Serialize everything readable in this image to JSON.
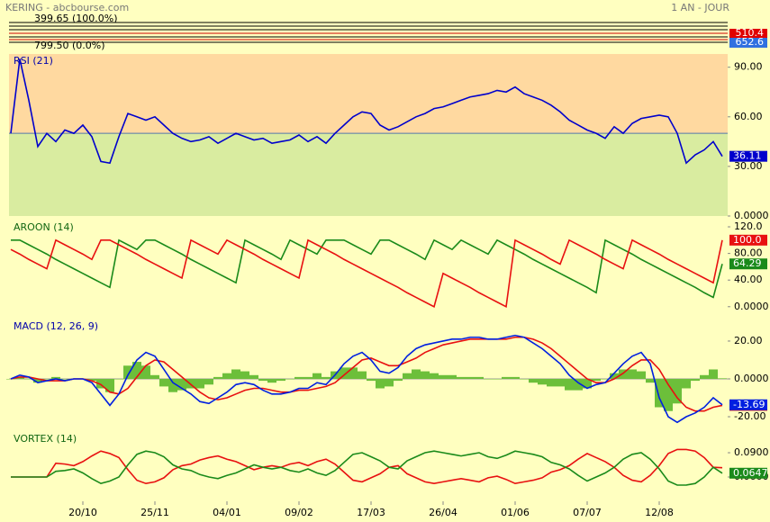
{
  "header": {
    "title": "KERING - abcbourse.com",
    "period": "1 AN - JOUR"
  },
  "price_panel": {
    "levels": [
      "399.65 (100.0%)",
      "799.50 (0.0%)"
    ],
    "last_prices": [
      {
        "label": "510.4",
        "color": "#e00000"
      },
      {
        "label": "652.6",
        "color": "#3070e0"
      }
    ]
  },
  "x_axis": {
    "categories": [
      null,
      null,
      null,
      null,
      null,
      null,
      null,
      null,
      "20/10",
      null,
      null,
      null,
      null,
      null,
      null,
      null,
      "25/11",
      null,
      null,
      null,
      null,
      null,
      null,
      null,
      "04/01",
      null,
      null,
      null,
      null,
      null,
      null,
      null,
      "09/02",
      null,
      null,
      null,
      null,
      null,
      null,
      null,
      "17/03",
      null,
      null,
      null,
      null,
      null,
      null,
      null,
      "26/04",
      null,
      null,
      null,
      null,
      null,
      null,
      null,
      "01/06",
      null,
      null,
      null,
      null,
      null,
      null,
      null,
      "07/07",
      null,
      null,
      null,
      null,
      null,
      null,
      null,
      "12/08",
      null,
      null,
      null,
      null,
      null,
      null,
      null
    ]
  },
  "chart_data": [
    {
      "type": "line",
      "title": "RSI (21)",
      "ylim": [
        0,
        98
      ],
      "ref_line": 50,
      "zone_colors": [
        "#ffd9a0",
        "#d9eca0"
      ],
      "yticks": [
        {
          "value": 90,
          "label": "90.00"
        },
        {
          "value": 60,
          "label": "60.00"
        },
        {
          "value": 30,
          "label": "30.00"
        },
        {
          "value": 0,
          "label": "0.0000"
        }
      ],
      "series": [
        {
          "color": "#0000cc",
          "values": [
            50,
            95,
            70,
            42,
            50,
            45,
            52,
            50,
            55,
            48,
            33,
            32,
            48,
            62,
            60,
            58,
            60,
            55,
            50,
            47,
            45,
            46,
            48,
            44,
            47,
            50,
            48,
            46,
            47,
            44,
            45,
            46,
            49,
            45,
            48,
            44,
            50,
            55,
            60,
            63,
            62,
            55,
            52,
            54,
            57,
            60,
            62,
            65,
            66,
            68,
            70,
            72,
            73,
            74,
            76,
            75,
            78,
            74,
            72,
            70,
            67,
            63,
            58,
            55,
            52,
            50,
            47,
            54,
            50,
            56,
            59,
            60,
            61,
            60,
            50,
            32,
            37,
            40,
            45,
            36.11
          ]
        }
      ]
    },
    {
      "type": "line",
      "title": "AROON (14)",
      "ylim": [
        -5.7,
        129.5
      ],
      "yticks": [
        {
          "value": 120,
          "label": "120.0"
        },
        {
          "value": 80,
          "label": "80.00"
        },
        {
          "value": 40,
          "label": "40.00"
        },
        {
          "value": 0,
          "label": "0.0000"
        }
      ],
      "series": [
        {
          "color": "#1a8a1a",
          "values": [
            100,
            100,
            93,
            86,
            79,
            71,
            64,
            57,
            50,
            43,
            36,
            29,
            100,
            93,
            86,
            100,
            100,
            93,
            86,
            79,
            71,
            64,
            57,
            50,
            43,
            36,
            100,
            93,
            86,
            79,
            71,
            100,
            93,
            86,
            79,
            100,
            100,
            100,
            93,
            86,
            79,
            100,
            100,
            93,
            86,
            79,
            71,
            100,
            93,
            86,
            100,
            93,
            86,
            79,
            100,
            93,
            86,
            79,
            71,
            64,
            57,
            50,
            43,
            36,
            29,
            21,
            100,
            93,
            86,
            79,
            71,
            64,
            57,
            50,
            43,
            36,
            29,
            21,
            14,
            64.29
          ]
        },
        {
          "color": "#e81010",
          "last_label": "100.0",
          "values": [
            86,
            79,
            71,
            64,
            57,
            100,
            93,
            86,
            79,
            71,
            100,
            100,
            93,
            86,
            79,
            71,
            64,
            57,
            50,
            43,
            100,
            93,
            86,
            79,
            100,
            93,
            86,
            79,
            71,
            64,
            57,
            50,
            43,
            100,
            93,
            86,
            79,
            71,
            64,
            57,
            50,
            43,
            36,
            29,
            21,
            14,
            7,
            0,
            50,
            43,
            36,
            29,
            21,
            14,
            7,
            0,
            100,
            93,
            86,
            79,
            71,
            64,
            100,
            93,
            86,
            79,
            71,
            64,
            57,
            100,
            93,
            86,
            79,
            71,
            64,
            57,
            50,
            43,
            36,
            100
          ]
        }
      ]
    },
    {
      "type": "line",
      "title": "MACD (12, 26, 9)",
      "ylim": [
        -25.7,
        31.4
      ],
      "ref_line": 0,
      "yticks": [
        {
          "value": 20,
          "label": "20.00"
        },
        {
          "value": 0,
          "label": "0.0000"
        },
        {
          "value": -20,
          "label": "-20.00"
        }
      ],
      "series": [
        {
          "color": "#6cbf3a",
          "kind": "bar",
          "values": [
            0,
            1,
            0,
            -2,
            0,
            1,
            0,
            0,
            0,
            -1,
            -5,
            -7,
            0,
            7,
            9,
            7,
            2,
            -4,
            -7,
            -6,
            -5,
            -5,
            -3,
            1,
            3,
            5,
            4,
            2,
            -1,
            -2,
            -1,
            0,
            1,
            1,
            3,
            1,
            4,
            6,
            6,
            4,
            -1,
            -5,
            -4,
            -1,
            3,
            5,
            4,
            3,
            2,
            2,
            1,
            1,
            1,
            0,
            0,
            1,
            1,
            0,
            -2,
            -3,
            -4,
            -4,
            -6,
            -6,
            -5,
            -1,
            0,
            3,
            5,
            5,
            4,
            -2,
            -15,
            -17,
            -13,
            -5,
            -1,
            2,
            5,
            0.3
          ]
        },
        {
          "color": "#e81010",
          "values": [
            0,
            1,
            1,
            0,
            -1,
            -1,
            -1,
            0,
            0,
            -1,
            -3,
            -7,
            -8,
            -5,
            1,
            7,
            10,
            9,
            5,
            1,
            -3,
            -7,
            -10,
            -11,
            -10,
            -8,
            -6,
            -5,
            -5,
            -6,
            -7,
            -7,
            -6,
            -6,
            -5,
            -4,
            -2,
            2,
            6,
            10,
            11,
            9,
            7,
            7,
            9,
            11,
            14,
            16,
            18,
            19,
            20,
            21,
            21,
            21,
            21,
            21,
            22,
            22,
            21,
            19,
            16,
            12,
            8,
            4,
            0,
            -2,
            -2,
            0,
            3,
            7,
            10,
            10,
            5,
            -3,
            -10,
            -15,
            -17,
            -17,
            -15,
            -14
          ]
        },
        {
          "color": "#0020e0",
          "values": [
            0,
            2,
            1,
            -2,
            -1,
            0,
            -1,
            0,
            0,
            -2,
            -8,
            -14,
            -8,
            2,
            10,
            14,
            12,
            5,
            -2,
            -5,
            -8,
            -12,
            -13,
            -10,
            -7,
            -3,
            -2,
            -3,
            -6,
            -8,
            -8,
            -7,
            -5,
            -5,
            -2,
            -3,
            2,
            8,
            12,
            14,
            10,
            4,
            3,
            6,
            12,
            16,
            18,
            19,
            20,
            21,
            21,
            22,
            22,
            21,
            21,
            22,
            23,
            22,
            19,
            16,
            12,
            8,
            2,
            -2,
            -5,
            -3,
            -2,
            3,
            8,
            12,
            14,
            8,
            -10,
            -20,
            -23,
            -20,
            -18,
            -15,
            -10,
            -13.69
          ]
        }
      ]
    },
    {
      "type": "line",
      "title": "VORTEX (14)",
      "ylim": [
        0.0322,
        0.1156
      ],
      "yticks": [
        {
          "value": 0.09,
          "label": "0.0900"
        },
        {
          "value": 0.06,
          "label": "0.0600"
        }
      ],
      "series": [
        {
          "color": "#e81010",
          "values": [
            0.06,
            0.06,
            0.06,
            0.06,
            0.06,
            0.077,
            0.076,
            0.074,
            0.079,
            0.086,
            0.092,
            0.089,
            0.084,
            0.069,
            0.056,
            0.052,
            0.054,
            0.059,
            0.069,
            0.074,
            0.076,
            0.081,
            0.084,
            0.086,
            0.082,
            0.079,
            0.074,
            0.069,
            0.072,
            0.074,
            0.072,
            0.076,
            0.078,
            0.074,
            0.079,
            0.082,
            0.076,
            0.066,
            0.056,
            0.054,
            0.059,
            0.064,
            0.072,
            0.074,
            0.064,
            0.059,
            0.054,
            0.052,
            0.054,
            0.056,
            0.058,
            0.056,
            0.054,
            0.059,
            0.061,
            0.057,
            0.052,
            0.054,
            0.056,
            0.059,
            0.066,
            0.069,
            0.074,
            0.082,
            0.089,
            0.084,
            0.079,
            0.072,
            0.062,
            0.056,
            0.054,
            0.062,
            0.074,
            0.089,
            0.094,
            0.094,
            0.092,
            0.084,
            0.072,
            0.0715
          ]
        },
        {
          "color": "#1a8a1a",
          "values": [
            0.06,
            0.06,
            0.06,
            0.06,
            0.06,
            0.067,
            0.068,
            0.07,
            0.065,
            0.058,
            0.052,
            0.055,
            0.06,
            0.075,
            0.088,
            0.092,
            0.09,
            0.085,
            0.075,
            0.07,
            0.068,
            0.063,
            0.06,
            0.058,
            0.062,
            0.065,
            0.07,
            0.075,
            0.072,
            0.07,
            0.072,
            0.068,
            0.066,
            0.07,
            0.065,
            0.062,
            0.068,
            0.078,
            0.088,
            0.09,
            0.085,
            0.08,
            0.072,
            0.07,
            0.08,
            0.085,
            0.09,
            0.092,
            0.09,
            0.088,
            0.086,
            0.088,
            0.09,
            0.085,
            0.083,
            0.087,
            0.092,
            0.09,
            0.088,
            0.085,
            0.078,
            0.075,
            0.07,
            0.062,
            0.055,
            0.06,
            0.065,
            0.072,
            0.082,
            0.088,
            0.09,
            0.082,
            0.07,
            0.055,
            0.05,
            0.05,
            0.052,
            0.06,
            0.072,
            0.0647
          ]
        }
      ]
    }
  ]
}
